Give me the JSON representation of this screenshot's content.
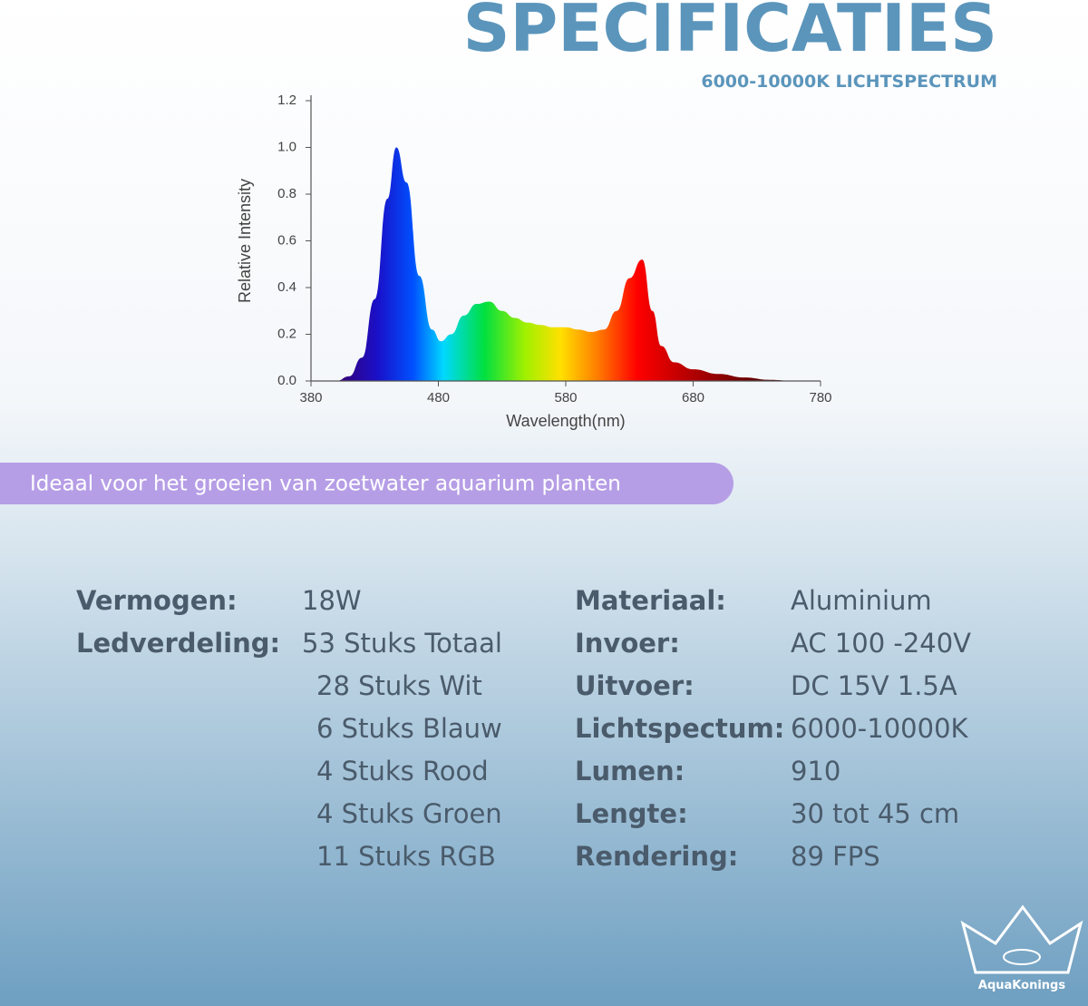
{
  "header": {
    "title": "SPECIFICATIES",
    "subtitle": "6000-10000K LICHTSPECTRUM"
  },
  "chart_data": {
    "type": "area",
    "x_label": "Wavelength(nm)",
    "y_label": "Relative Intensity",
    "x": [
      400,
      410,
      420,
      430,
      440,
      447,
      455,
      465,
      475,
      482,
      490,
      500,
      510,
      520,
      530,
      540,
      550,
      560,
      570,
      580,
      590,
      600,
      610,
      620,
      630,
      640,
      648,
      655,
      665,
      680,
      700,
      720,
      740,
      760
    ],
    "values": [
      0.0,
      0.02,
      0.1,
      0.35,
      0.78,
      1.0,
      0.85,
      0.45,
      0.22,
      0.17,
      0.2,
      0.28,
      0.33,
      0.34,
      0.3,
      0.27,
      0.25,
      0.24,
      0.23,
      0.23,
      0.22,
      0.21,
      0.22,
      0.3,
      0.44,
      0.52,
      0.3,
      0.15,
      0.08,
      0.05,
      0.03,
      0.015,
      0.005,
      0.0
    ],
    "xlim": [
      380,
      780
    ],
    "ylim": [
      0,
      1.2
    ],
    "xticks": [
      380,
      480,
      580,
      680,
      780
    ],
    "yticks": [
      {
        "value": 0,
        "label": "0.0"
      },
      0.2,
      0.4,
      0.6,
      0.8,
      {
        "value": 1,
        "label": "1.0"
      },
      1.2
    ]
  },
  "banner": {
    "text": "Ideaal voor het groeien van zoetwater aquarium planten"
  },
  "specs": {
    "left": [
      {
        "label": "Vermogen:",
        "values": [
          "18W"
        ]
      },
      {
        "label": "Ledverdeling:",
        "values": [
          "53 Stuks Totaal",
          "28 Stuks Wit",
          "6 Stuks Blauw",
          "4 Stuks Rood",
          "4 Stuks Groen",
          "11 Stuks RGB"
        ]
      }
    ],
    "right": [
      {
        "label": "Materiaal:",
        "value": "Aluminium"
      },
      {
        "label": "Invoer:",
        "value": "AC 100 -240V"
      },
      {
        "label": "Uitvoer:",
        "value": "DC 15V 1.5A"
      },
      {
        "label": "Lichtspectum:",
        "value": "6000-10000K"
      },
      {
        "label": "Lumen:",
        "value": "910"
      },
      {
        "label": "Lengte:",
        "value": "30 tot 45 cm"
      },
      {
        "label": "Rendering:",
        "value": "89 FPS"
      }
    ]
  },
  "logo": {
    "text": "AquaKonings"
  }
}
